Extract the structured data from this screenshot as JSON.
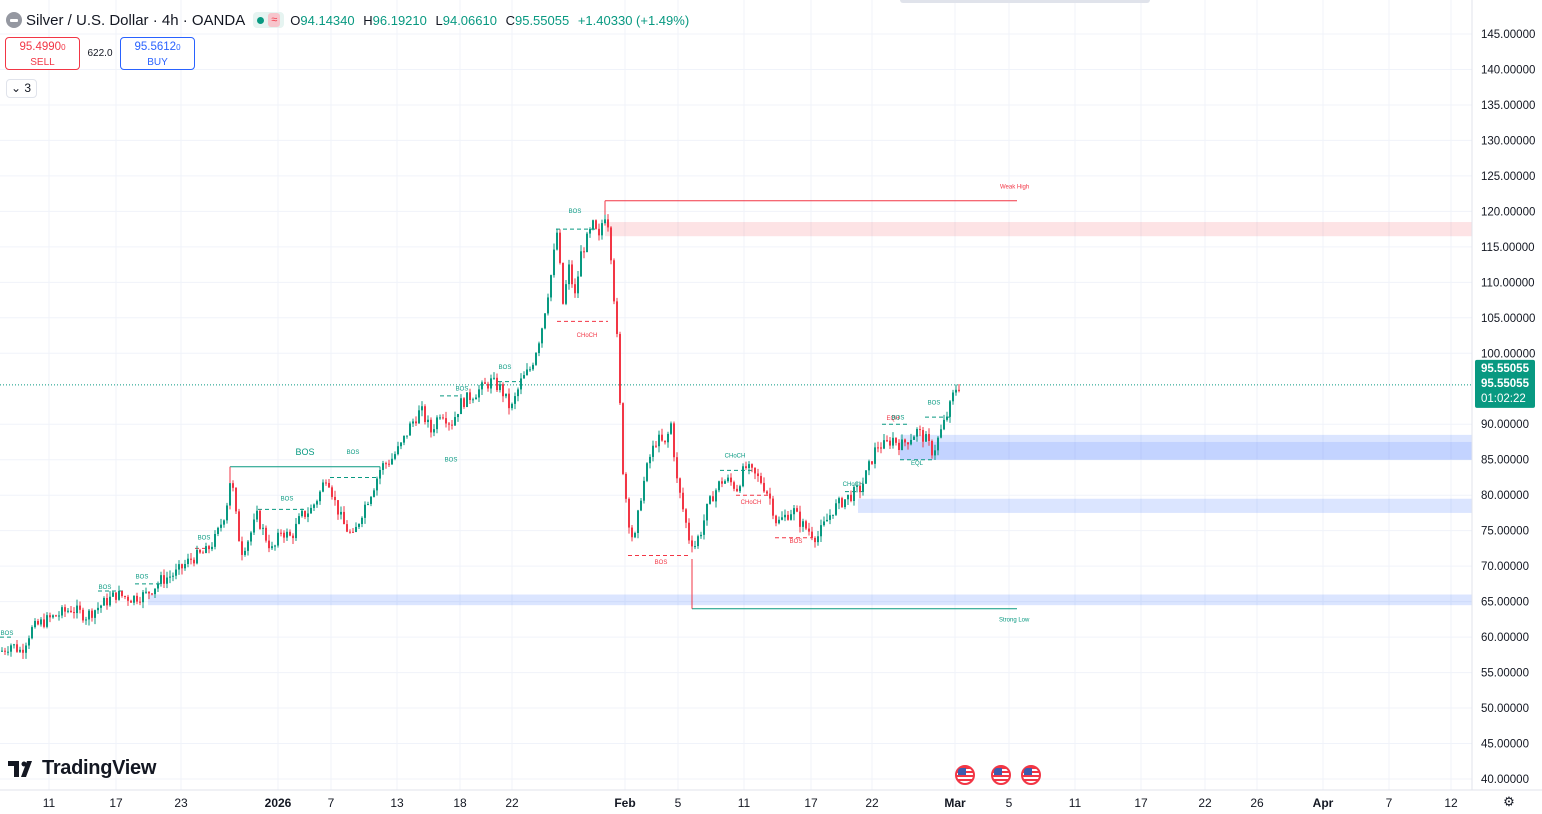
{
  "header": {
    "title": "Silver / U.S. Dollar · 4h · OANDA",
    "open_label": "O",
    "open": "94.14340",
    "high_label": "H",
    "high": "96.19210",
    "low_label": "L",
    "low": "94.06610",
    "close_label": "C",
    "close": "95.55055",
    "change": "+1.40330 (+1.49%)"
  },
  "trade": {
    "sell_price": "95.4990",
    "sell_price_small": "0",
    "sell_label": "SELL",
    "spread": "622.0",
    "buy_price": "95.5612",
    "buy_price_small": "0",
    "buy_label": "BUY"
  },
  "indicators_toggle": {
    "icon": "chevron-down-icon",
    "count": "3"
  },
  "price_axis": {
    "ticks": [
      "145.00000",
      "140.00000",
      "135.00000",
      "130.00000",
      "125.00000",
      "120.00000",
      "115.00000",
      "110.00000",
      "105.00000",
      "100.00000",
      "90.00000",
      "85.00000",
      "80.00000",
      "75.00000",
      "70.00000",
      "65.00000",
      "60.00000",
      "55.00000",
      "50.00000",
      "45.00000",
      "40.00000"
    ],
    "tick_values": [
      145,
      140,
      135,
      130,
      125,
      120,
      115,
      110,
      105,
      100,
      90,
      85,
      80,
      75,
      70,
      65,
      60,
      55,
      50,
      45,
      40
    ],
    "current_price": "95.55055",
    "current_price_value": 95.55055,
    "current_price_repeat": "95.55055",
    "countdown": "01:02:22"
  },
  "time_axis": {
    "labels": [
      "11",
      "17",
      "23",
      "2026",
      "7",
      "13",
      "18",
      "22",
      "Feb",
      "5",
      "11",
      "17",
      "22",
      "Mar",
      "5",
      "11",
      "17",
      "22",
      "26",
      "Apr",
      "7",
      "12"
    ],
    "bold": [
      "2026",
      "Feb",
      "Mar",
      "Apr"
    ]
  },
  "annotations": {
    "weak_high": "Weak High",
    "strong_low": "Strong Low",
    "bos": "BOS",
    "choch": "CHoCH",
    "eql": "EQL",
    "eqh": "EQH"
  },
  "brand": "TradingView",
  "event_icons": [
    "us-flag-icon",
    "us-flag-icon",
    "us-flag-icon"
  ],
  "colors": {
    "up": "#089981",
    "down": "#f23645",
    "demand_zone": "#2962ff",
    "supply_zone": "#f23645",
    "price_line": "#089981"
  },
  "chart_data": {
    "type": "candlestick",
    "instrument": "Silver / U.S. Dollar",
    "timeframe": "4h",
    "ylim": [
      40,
      145
    ],
    "y_scale": "linear",
    "grid": true,
    "path_points": [
      [
        0,
        58
      ],
      [
        10,
        59
      ],
      [
        20,
        58
      ],
      [
        30,
        61
      ],
      [
        40,
        62
      ],
      [
        55,
        63
      ],
      [
        70,
        64
      ],
      [
        85,
        63
      ],
      [
        100,
        64.5
      ],
      [
        115,
        66
      ],
      [
        130,
        65.5
      ],
      [
        145,
        66
      ],
      [
        160,
        68
      ],
      [
        175,
        69
      ],
      [
        190,
        71
      ],
      [
        205,
        72
      ],
      [
        215,
        74
      ],
      [
        225,
        78
      ],
      [
        230,
        83
      ],
      [
        235,
        77
      ],
      [
        240,
        72
      ],
      [
        248,
        74
      ],
      [
        256,
        77
      ],
      [
        265,
        74
      ],
      [
        272,
        72
      ],
      [
        280,
        75
      ],
      [
        290,
        74
      ],
      [
        300,
        77
      ],
      [
        310,
        78
      ],
      [
        318,
        80
      ],
      [
        326,
        83
      ],
      [
        334,
        79
      ],
      [
        342,
        76
      ],
      [
        352,
        74
      ],
      [
        362,
        78
      ],
      [
        372,
        81
      ],
      [
        380,
        84
      ],
      [
        390,
        85
      ],
      [
        400,
        87
      ],
      [
        410,
        90
      ],
      [
        420,
        92
      ],
      [
        430,
        89
      ],
      [
        440,
        92
      ],
      [
        450,
        90
      ],
      [
        460,
        93
      ],
      [
        470,
        94
      ],
      [
        480,
        95
      ],
      [
        490,
        96
      ],
      [
        500,
        95
      ],
      [
        510,
        92
      ],
      [
        520,
        96
      ],
      [
        530,
        98
      ],
      [
        540,
        103
      ],
      [
        550,
        111
      ],
      [
        556,
        117
      ],
      [
        562,
        107
      ],
      [
        568,
        112
      ],
      [
        574,
        108
      ],
      [
        580,
        114
      ],
      [
        586,
        116
      ],
      [
        592,
        118
      ],
      [
        598,
        116
      ],
      [
        603,
        120
      ],
      [
        608,
        118
      ],
      [
        612,
        110
      ],
      [
        617,
        100
      ],
      [
        621,
        85
      ],
      [
        627,
        77
      ],
      [
        633,
        73
      ],
      [
        640,
        80
      ],
      [
        648,
        85
      ],
      [
        656,
        88
      ],
      [
        664,
        87
      ],
      [
        670,
        90
      ],
      [
        676,
        82
      ],
      [
        682,
        78
      ],
      [
        688,
        74
      ],
      [
        694,
        73
      ],
      [
        700,
        75
      ],
      [
        706,
        78
      ],
      [
        712,
        80
      ],
      [
        720,
        82
      ],
      [
        728,
        82
      ],
      [
        736,
        81
      ],
      [
        744,
        84
      ],
      [
        752,
        83
      ],
      [
        760,
        82
      ],
      [
        768,
        80
      ],
      [
        776,
        76
      ],
      [
        784,
        77
      ],
      [
        792,
        78
      ],
      [
        800,
        76
      ],
      [
        808,
        75
      ],
      [
        816,
        74
      ],
      [
        824,
        76
      ],
      [
        832,
        78
      ],
      [
        840,
        79
      ],
      [
        850,
        80
      ],
      [
        860,
        81
      ],
      [
        868,
        84
      ],
      [
        876,
        87
      ],
      [
        884,
        87
      ],
      [
        892,
        88
      ],
      [
        900,
        87
      ],
      [
        908,
        88
      ],
      [
        916,
        89
      ],
      [
        924,
        88
      ],
      [
        932,
        86
      ],
      [
        940,
        89
      ],
      [
        948,
        92
      ],
      [
        954,
        95
      ],
      [
        960,
        95.55
      ]
    ],
    "zones": [
      {
        "kind": "supply",
        "from": 116.5,
        "to": 118.5
      },
      {
        "kind": "demand",
        "from": 87.5,
        "to": 88.5
      },
      {
        "kind": "demand",
        "from": 85,
        "to": 87.5
      },
      {
        "kind": "demand",
        "from": 77.5,
        "to": 79.5
      },
      {
        "kind": "demand",
        "from": 64.5,
        "to": 66
      }
    ],
    "levels": [
      {
        "label": "Weak High",
        "value": 121.5
      },
      {
        "label": "Strong Low",
        "value": 64
      }
    ],
    "structure_labels": [
      {
        "text": "BOS",
        "value": 60
      },
      {
        "text": "BOS",
        "value": 66.5
      },
      {
        "text": "BOS",
        "value": 68
      },
      {
        "text": "BOS",
        "value": 73.5
      },
      {
        "text": "BOS",
        "value": 79
      },
      {
        "text": "BOS",
        "value": 85.5
      },
      {
        "text": "BOS",
        "value": 84.5
      },
      {
        "text": "BOS",
        "value": 97.5
      },
      {
        "text": "BOS",
        "value": 94.5
      },
      {
        "text": "BOS",
        "value": 119.5
      },
      {
        "text": "CHoCH",
        "value": 102
      },
      {
        "text": "BOS",
        "value": 70
      },
      {
        "text": "CHoCH",
        "value": 85
      },
      {
        "text": "CHoCH",
        "value": 78.5
      },
      {
        "text": "BOS",
        "value": 73
      },
      {
        "text": "CHoCH",
        "value": 81
      },
      {
        "text": "EQH",
        "value": 90.3
      },
      {
        "text": "BOS",
        "value": 90.4
      },
      {
        "text": "BOS",
        "value": 92.5
      },
      {
        "text": "EQL",
        "value": 84
      }
    ]
  }
}
